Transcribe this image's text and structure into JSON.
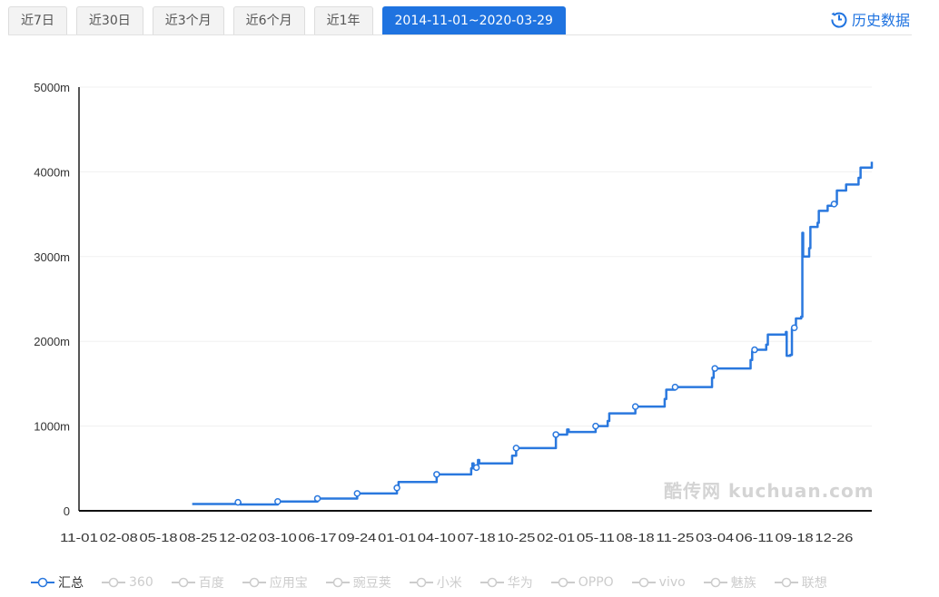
{
  "tabs": [
    {
      "label": "近7日"
    },
    {
      "label": "近30日"
    },
    {
      "label": "近3个月"
    },
    {
      "label": "近6个月"
    },
    {
      "label": "近1年"
    },
    {
      "label": "2014-11-01~2020-03-29",
      "active": true
    }
  ],
  "history_link": {
    "label": "历史数据",
    "icon": "history-clock-icon"
  },
  "watermark": "酷传网 kuchuan.com",
  "accent_color": "#2a78de",
  "chart_data": {
    "type": "line",
    "title": "",
    "xlabel": "",
    "ylabel": "",
    "x_range": [
      "2014-11-01",
      "2020-03-29"
    ],
    "ylim": [
      0,
      5000
    ],
    "y_ticks": [
      "0",
      "1000m",
      "2000m",
      "3000m",
      "4000m",
      "5000m"
    ],
    "y_tick_values": [
      0,
      1000,
      2000,
      3000,
      4000,
      5000
    ],
    "x_ticks": [
      "11-01",
      "02-08",
      "05-18",
      "08-25",
      "12-02",
      "03-10",
      "06-17",
      "09-24",
      "01-01",
      "04-10",
      "07-18",
      "10-25",
      "02-01",
      "05-11",
      "08-18",
      "11-25",
      "03-04",
      "06-11",
      "09-18",
      "12-26"
    ],
    "x_tick_dates": [
      "2014-11-01",
      "2015-02-08",
      "2015-05-18",
      "2015-08-25",
      "2015-12-02",
      "2016-03-10",
      "2016-06-17",
      "2016-09-24",
      "2017-01-01",
      "2017-04-10",
      "2017-07-18",
      "2017-10-25",
      "2018-02-01",
      "2018-05-11",
      "2018-08-18",
      "2018-11-25",
      "2019-03-04",
      "2019-06-11",
      "2019-09-18",
      "2019-12-26"
    ],
    "grid": true,
    "legend": "bottom",
    "series": [
      {
        "name": "汇总",
        "color": "#2a78de",
        "points": [
          [
            "2015-08-10",
            80
          ],
          [
            "2015-12-02",
            100
          ],
          [
            "2015-12-08",
            75
          ],
          [
            "2016-03-10",
            110
          ],
          [
            "2016-06-17",
            145
          ],
          [
            "2016-09-24",
            205
          ],
          [
            "2017-01-01",
            270
          ],
          [
            "2017-01-05",
            340
          ],
          [
            "2017-04-10",
            430
          ],
          [
            "2017-07-05",
            500
          ],
          [
            "2017-07-08",
            560
          ],
          [
            "2017-07-11",
            500
          ],
          [
            "2017-07-18",
            510
          ],
          [
            "2017-07-22",
            600
          ],
          [
            "2017-07-25",
            560
          ],
          [
            "2017-10-15",
            650
          ],
          [
            "2017-10-25",
            740
          ],
          [
            "2018-02-01",
            900
          ],
          [
            "2018-03-01",
            960
          ],
          [
            "2018-03-05",
            930
          ],
          [
            "2018-05-11",
            1000
          ],
          [
            "2018-06-10",
            1060
          ],
          [
            "2018-06-14",
            1150
          ],
          [
            "2018-08-18",
            1230
          ],
          [
            "2018-10-30",
            1320
          ],
          [
            "2018-11-03",
            1430
          ],
          [
            "2018-11-25",
            1460
          ],
          [
            "2019-02-25",
            1570
          ],
          [
            "2019-03-01",
            1680
          ],
          [
            "2019-06-01",
            1780
          ],
          [
            "2019-06-05",
            1880
          ],
          [
            "2019-06-11",
            1900
          ],
          [
            "2019-07-10",
            1960
          ],
          [
            "2019-07-14",
            2080
          ],
          [
            "2019-08-28",
            2110
          ],
          [
            "2019-08-30",
            1830
          ],
          [
            "2019-09-08",
            1840
          ],
          [
            "2019-09-12",
            2150
          ],
          [
            "2019-09-18",
            2160
          ],
          [
            "2019-09-22",
            2270
          ],
          [
            "2019-10-05",
            2290
          ],
          [
            "2019-10-08",
            3280
          ],
          [
            "2019-10-10",
            3000
          ],
          [
            "2019-10-25",
            3100
          ],
          [
            "2019-10-28",
            3350
          ],
          [
            "2019-11-15",
            3400
          ],
          [
            "2019-11-18",
            3540
          ],
          [
            "2019-12-10",
            3600
          ],
          [
            "2019-12-26",
            3620
          ],
          [
            "2020-01-02",
            3780
          ],
          [
            "2020-01-25",
            3850
          ],
          [
            "2020-02-25",
            3930
          ],
          [
            "2020-03-01",
            4050
          ],
          [
            "2020-03-29",
            4120
          ]
        ]
      }
    ],
    "markers": [
      "2015-12-02",
      "2016-03-10",
      "2016-06-17",
      "2016-09-24",
      "2017-01-01",
      "2017-04-10",
      "2017-07-18",
      "2017-10-25",
      "2018-02-01",
      "2018-05-11",
      "2018-08-18",
      "2018-11-25",
      "2019-03-04",
      "2019-06-11",
      "2019-09-18",
      "2019-12-26"
    ]
  },
  "legend": [
    {
      "label": "汇总",
      "active": true
    },
    {
      "label": "360"
    },
    {
      "label": "百度"
    },
    {
      "label": "应用宝"
    },
    {
      "label": "豌豆荚"
    },
    {
      "label": "小米"
    },
    {
      "label": "华为"
    },
    {
      "label": "OPPO"
    },
    {
      "label": "vivo"
    },
    {
      "label": "魅族"
    },
    {
      "label": "联想"
    }
  ]
}
